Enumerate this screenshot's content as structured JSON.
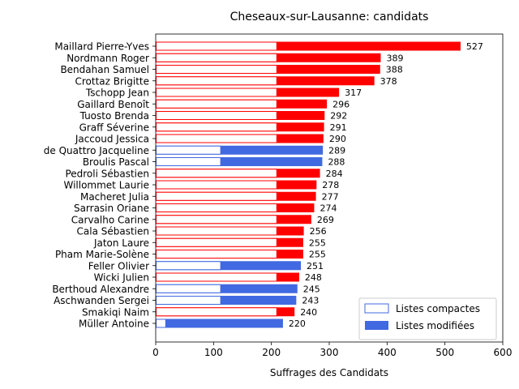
{
  "chart_data": {
    "type": "bar",
    "orientation": "horizontal",
    "title": "Cheseaux-sur-Lausanne: candidats",
    "xlabel": "Suffrages des Candidats",
    "ylabel": "",
    "xlim": [
      0,
      600
    ],
    "xticks": [
      0,
      100,
      200,
      300,
      400,
      500,
      600
    ],
    "legend_position": "bottom-right",
    "colors": {
      "red": "#ff0000",
      "blue": "#4169e1"
    },
    "legend": [
      {
        "label": "Listes compactes",
        "style": "outline"
      },
      {
        "label": "Listes modifiées",
        "style": "filled"
      }
    ],
    "categories": [
      "Maillard Pierre-Yves",
      "Nordmann Roger",
      "Bendahan Samuel",
      "Crottaz Brigitte",
      "Tschopp Jean",
      "Gaillard Benoît",
      "Tuosto Brenda",
      "Graff Séverine",
      "Jaccoud Jessica",
      "de Quattro Jacqueline",
      "Broulis Pascal",
      "Pedroli Sébastien",
      "Willommet Laurie",
      "Macheret Julia",
      "Sarrasin Oriane",
      "Carvalho Carine",
      "Cala Sébastien",
      "Jaton Laure",
      "Pham Marie-Solène",
      "Feller Olivier",
      "Wicki Julien",
      "Berthoud Alexandre",
      "Aschwanden Sergei",
      "Smakiqi Naim",
      "Müller Antoine"
    ],
    "totals": [
      527,
      389,
      388,
      378,
      317,
      296,
      292,
      291,
      290,
      289,
      288,
      284,
      278,
      277,
      274,
      269,
      256,
      255,
      255,
      251,
      248,
      245,
      243,
      240,
      220
    ],
    "compact": [
      210,
      210,
      210,
      210,
      210,
      210,
      210,
      210,
      210,
      113,
      113,
      210,
      210,
      210,
      210,
      210,
      210,
      210,
      210,
      113,
      210,
      113,
      113,
      210,
      18
    ],
    "bar_colors": [
      "red",
      "red",
      "red",
      "red",
      "red",
      "red",
      "red",
      "red",
      "red",
      "blue",
      "blue",
      "red",
      "red",
      "red",
      "red",
      "red",
      "red",
      "red",
      "red",
      "blue",
      "red",
      "blue",
      "blue",
      "red",
      "blue"
    ]
  }
}
